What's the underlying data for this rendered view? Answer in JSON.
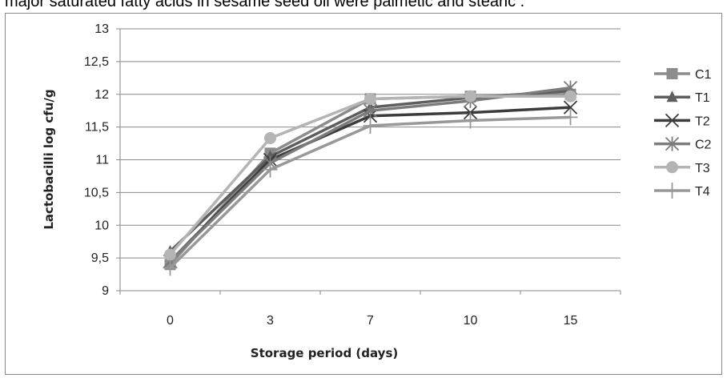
{
  "page_text": "major saturated fatty acids in sesame seed oil were palmetic and stearic .",
  "chart_data": {
    "type": "line",
    "title": "",
    "xlabel": "Storage period (days)",
    "ylabel": "Lactobacilli log cfu/g",
    "categories": [
      "0",
      "3",
      "7",
      "10",
      "15"
    ],
    "ylim": [
      9,
      13
    ],
    "y_ticks": [
      "9",
      "9,5",
      "10",
      "10,5",
      "11",
      "11,5",
      "12",
      "12,5",
      "13"
    ],
    "grid": true,
    "legend_position": "right",
    "series": [
      {
        "name": "C1",
        "values": [
          9.4,
          11.1,
          11.93,
          11.97,
          12.0
        ],
        "color": "#8c8c8c",
        "marker": "square"
      },
      {
        "name": "T1",
        "values": [
          9.6,
          11.05,
          11.8,
          11.95,
          12.05
        ],
        "color": "#5e5e5e",
        "marker": "triangle"
      },
      {
        "name": "T2",
        "values": [
          9.45,
          11.0,
          11.67,
          11.72,
          11.8
        ],
        "color": "#3c3c3c",
        "marker": "x"
      },
      {
        "name": "C2",
        "values": [
          9.45,
          10.95,
          11.75,
          11.9,
          12.1
        ],
        "color": "#7c7c7c",
        "marker": "star"
      },
      {
        "name": "T3",
        "values": [
          9.55,
          11.33,
          11.93,
          11.97,
          11.97
        ],
        "color": "#b4b4b4",
        "marker": "circle"
      },
      {
        "name": "T4",
        "values": [
          9.35,
          10.85,
          11.52,
          11.6,
          11.65
        ],
        "color": "#989898",
        "marker": "plus"
      }
    ]
  }
}
